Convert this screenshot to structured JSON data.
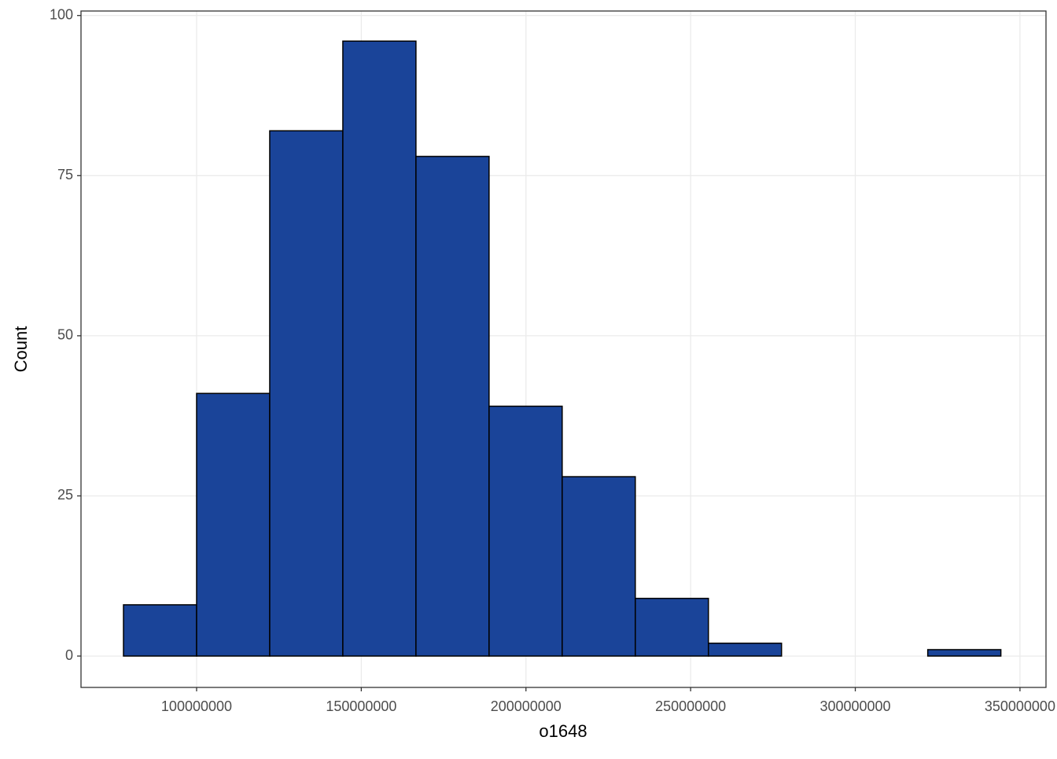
{
  "chart_data": {
    "type": "histogram",
    "x_label": "o1648",
    "y_label": "Count",
    "bins": [
      77800000,
      100000000,
      122200000,
      144400000,
      166600000,
      188800000,
      211000000,
      233200000,
      255400000,
      277600000,
      299800000,
      322000000,
      344200000
    ],
    "counts": [
      8,
      41,
      82,
      96,
      78,
      39,
      28,
      9,
      2,
      0,
      0,
      1
    ],
    "color": "#1a4499",
    "edge_color": "#000000",
    "xlim": [
      64900000,
      357900000
    ],
    "xticks": [
      100000000,
      150000000,
      200000000,
      250000000,
      300000000,
      350000000
    ],
    "ylim": [
      -4.9,
      100.7
    ],
    "yticks": [
      0,
      25,
      50,
      75,
      100
    ],
    "grid": true
  }
}
